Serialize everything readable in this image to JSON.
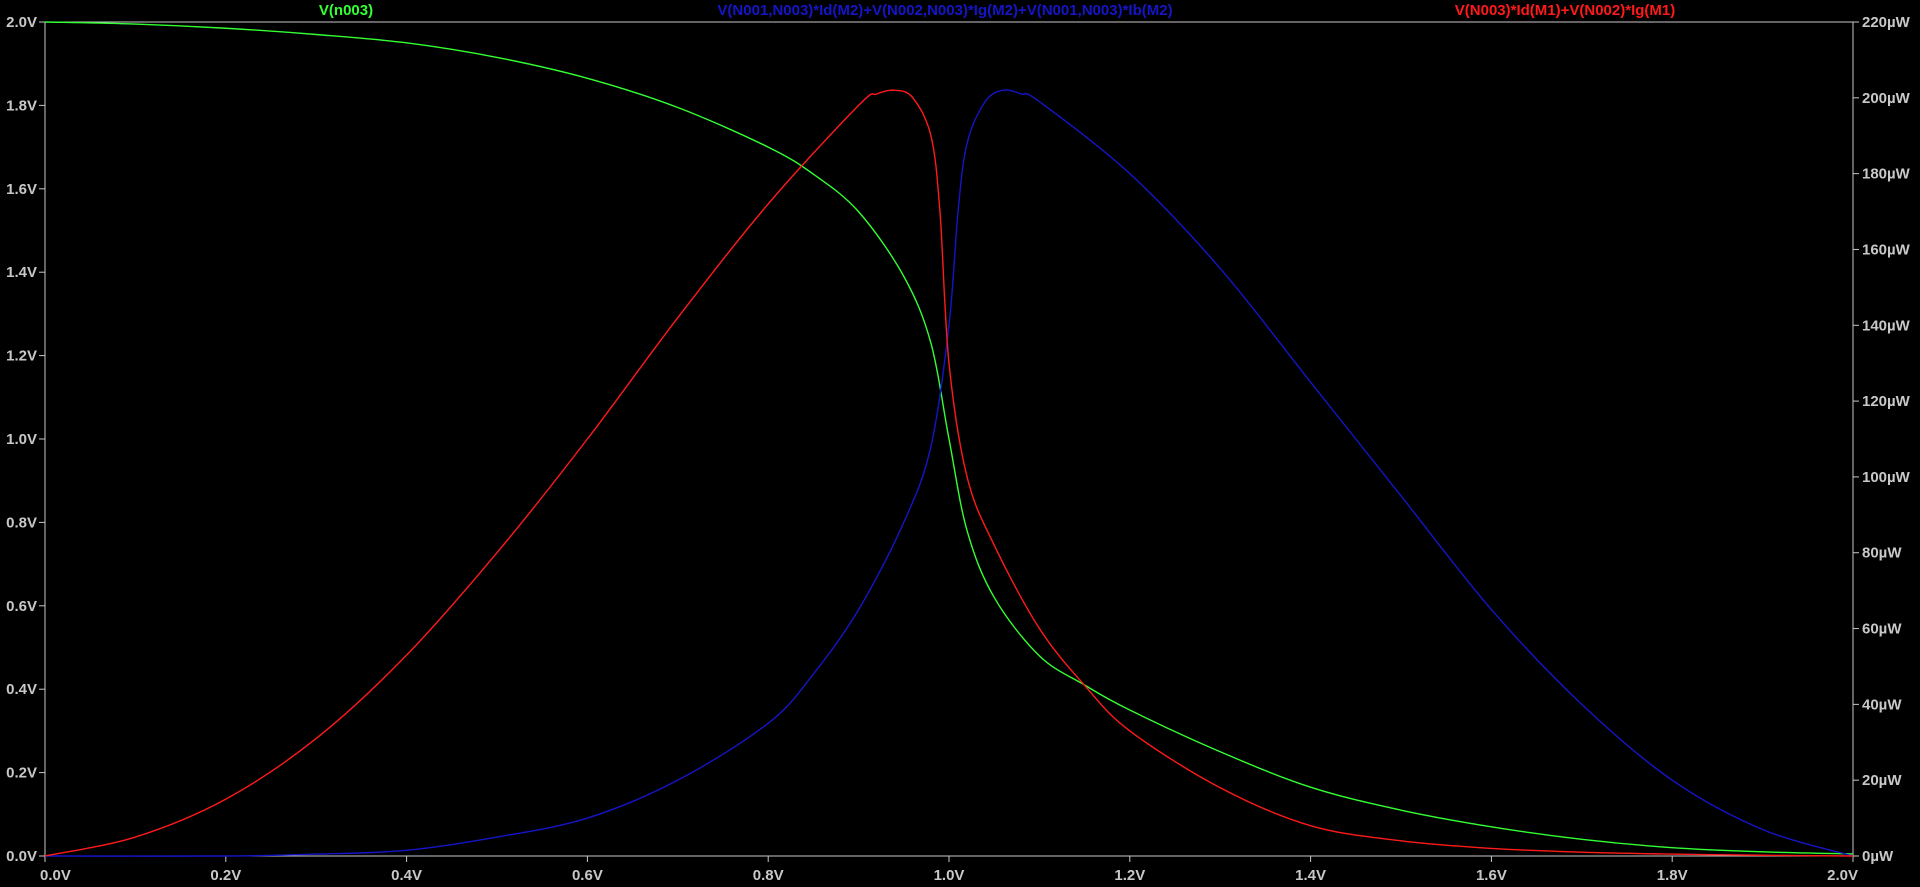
{
  "chart_data": {
    "type": "line",
    "background": "#000000",
    "axis_color": "#c8c8c8",
    "grid": false,
    "title": "",
    "xlabel": "",
    "ylabel": "",
    "y2label": "",
    "xlim": [
      0.0,
      2.0
    ],
    "ylim": [
      0.0,
      2.0
    ],
    "y2lim": [
      0,
      220
    ],
    "x_ticks": [
      "0.0V",
      "0.2V",
      "0.4V",
      "0.6V",
      "0.8V",
      "1.0V",
      "1.2V",
      "1.4V",
      "1.6V",
      "1.8V",
      "2.0V"
    ],
    "x_tick_values": [
      0.0,
      0.2,
      0.4,
      0.6,
      0.8,
      1.0,
      1.2,
      1.4,
      1.6,
      1.8,
      2.0
    ],
    "y_ticks": [
      "0.0V",
      "0.2V",
      "0.4V",
      "0.6V",
      "0.8V",
      "1.0V",
      "1.2V",
      "1.4V",
      "1.6V",
      "1.8V",
      "2.0V"
    ],
    "y_tick_values": [
      0.0,
      0.2,
      0.4,
      0.6,
      0.8,
      1.0,
      1.2,
      1.4,
      1.6,
      1.8,
      2.0
    ],
    "y2_ticks": [
      "0µW",
      "20µW",
      "40µW",
      "60µW",
      "80µW",
      "100µW",
      "120µW",
      "140µW",
      "160µW",
      "180µW",
      "200µW",
      "220µW"
    ],
    "y2_tick_values": [
      0,
      20,
      40,
      60,
      80,
      100,
      120,
      140,
      160,
      180,
      200,
      220
    ],
    "series": [
      {
        "name": "V(n003)",
        "color": "#33ff33",
        "axis": "left",
        "x": [
          0.0,
          0.1,
          0.2,
          0.3,
          0.4,
          0.5,
          0.6,
          0.7,
          0.8,
          0.85,
          0.9,
          0.95,
          0.98,
          1.0,
          1.02,
          1.05,
          1.1,
          1.15,
          1.2,
          1.3,
          1.4,
          1.5,
          1.6,
          1.7,
          1.8,
          1.9,
          2.0
        ],
        "y": [
          2.0,
          1.995,
          1.985,
          1.97,
          1.95,
          1.915,
          1.865,
          1.795,
          1.7,
          1.635,
          1.545,
          1.39,
          1.23,
          1.0,
          0.78,
          0.62,
          0.48,
          0.41,
          0.35,
          0.25,
          0.165,
          0.11,
          0.07,
          0.04,
          0.02,
          0.01,
          0.005
        ]
      },
      {
        "name": "V(N001,N003)*Id(M2)+V(N002,N003)*Ig(M2)+V(N001,N003)*Ib(M2)",
        "color": "#1515c8",
        "axis": "right",
        "x": [
          0.0,
          0.2,
          0.3,
          0.4,
          0.5,
          0.6,
          0.7,
          0.8,
          0.85,
          0.9,
          0.95,
          0.98,
          1.0,
          1.01,
          1.02,
          1.04,
          1.06,
          1.08,
          1.1,
          1.2,
          1.3,
          1.4,
          1.5,
          1.6,
          1.7,
          1.8,
          1.9,
          2.0
        ],
        "y": [
          0,
          0,
          0.5,
          1.5,
          5,
          10,
          20,
          35,
          48,
          65,
          88,
          108,
          140,
          170,
          188,
          199,
          202,
          201,
          199,
          180,
          155,
          125,
          95,
          65,
          40,
          20,
          7,
          0
        ]
      },
      {
        "name": "V(N003)*Id(M1)+V(N002)*Ig(M1)",
        "color": "#ff1a1a",
        "axis": "right",
        "x": [
          0.0,
          0.1,
          0.2,
          0.3,
          0.4,
          0.5,
          0.6,
          0.7,
          0.8,
          0.9,
          0.92,
          0.94,
          0.96,
          0.98,
          0.99,
          1.0,
          1.02,
          1.05,
          1.1,
          1.15,
          1.2,
          1.3,
          1.4,
          1.5,
          1.6,
          1.7,
          1.8,
          1.9,
          2.0
        ],
        "y": [
          0,
          5,
          15,
          31,
          53,
          80,
          110,
          142,
          172,
          198,
          201,
          202,
          200,
          190,
          170,
          130,
          100,
          82,
          60,
          45,
          33,
          18,
          8,
          4,
          2,
          1,
          0.5,
          0.2,
          0
        ]
      }
    ]
  }
}
